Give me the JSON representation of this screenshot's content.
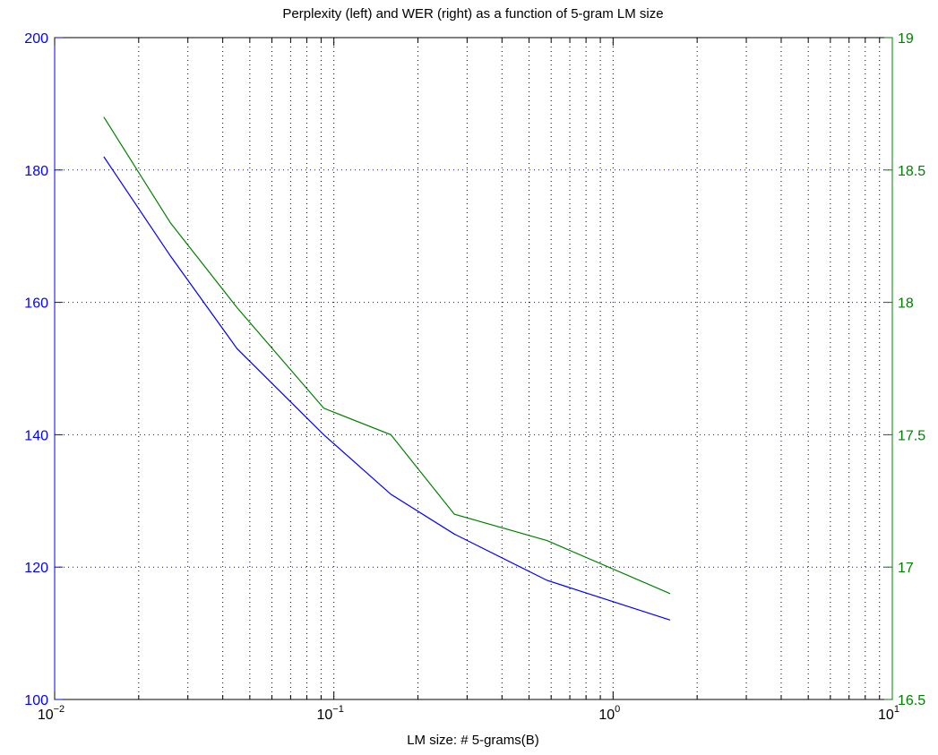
{
  "chart_data": {
    "type": "line",
    "title": "Perplexity (left) and WER (right) as a function of 5-gram LM size",
    "xlabel": "LM size: # 5-grams(B)",
    "x_scale": "log",
    "xlim": [
      0.01,
      10
    ],
    "x_ticks": [
      {
        "base": "10",
        "exp": "−2"
      },
      {
        "base": "10",
        "exp": "−1"
      },
      {
        "base": "10",
        "exp": "0"
      },
      {
        "base": "10",
        "exp": "1"
      }
    ],
    "y_left": {
      "ylim": [
        100,
        200
      ],
      "ticks": [
        "100",
        "120",
        "140",
        "160",
        "180",
        "200"
      ],
      "color": "#0000ff"
    },
    "y_right": {
      "ylim": [
        16.5,
        19
      ],
      "ticks": [
        "16.5",
        "17",
        "17.5",
        "18",
        "18.5",
        "19"
      ],
      "color": "#008000"
    },
    "grid": true,
    "series": [
      {
        "axis": "left",
        "color": "#0000ff",
        "x": [
          0.015,
          0.026,
          0.045,
          0.092,
          0.16,
          0.27,
          0.58,
          1.6
        ],
        "values": [
          182,
          167,
          153,
          140,
          131,
          125,
          118,
          112
        ]
      },
      {
        "axis": "right",
        "color": "#008000",
        "x": [
          0.015,
          0.026,
          0.045,
          0.092,
          0.16,
          0.27,
          0.58,
          1.6
        ],
        "values": [
          18.7,
          18.3,
          17.98,
          17.6,
          17.5,
          17.2,
          17.1,
          16.9
        ]
      }
    ]
  }
}
